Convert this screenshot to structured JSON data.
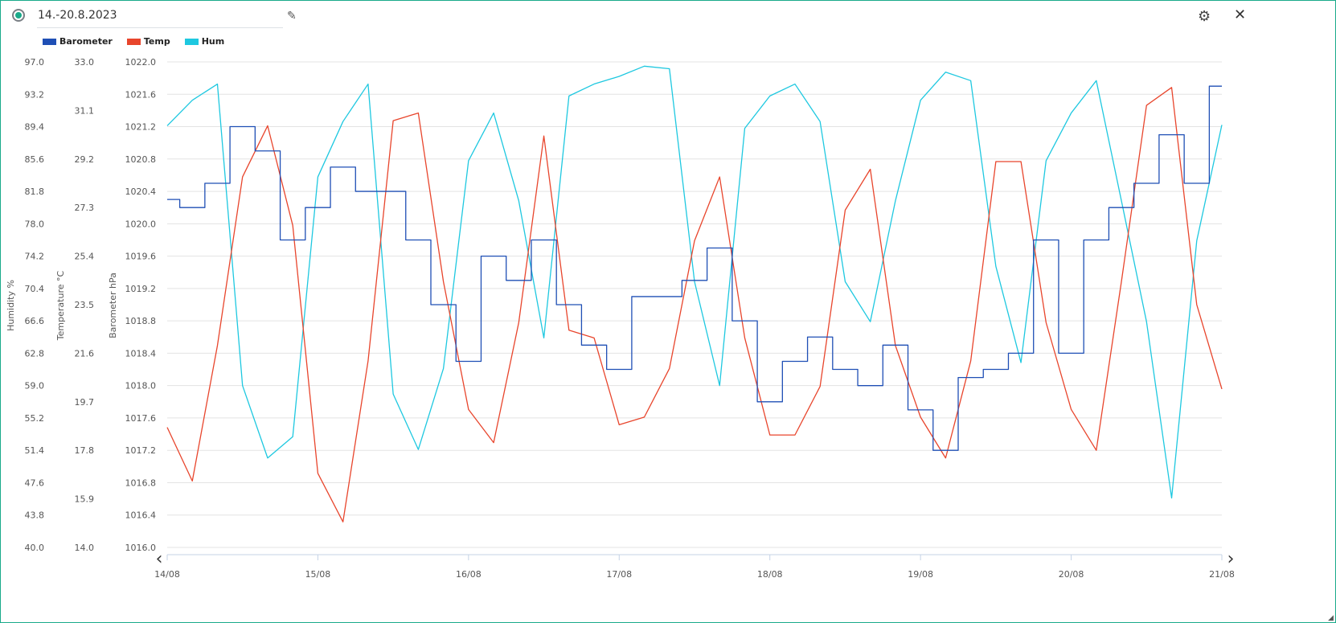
{
  "header": {
    "title": "14.-20.8.2023",
    "status_color": "#1aaa8a",
    "edit_icon": "pencil-icon",
    "settings_icon": "gear-icon",
    "close_icon": "close-icon"
  },
  "chart_data": {
    "type": "line",
    "legend_placement": "top-left",
    "grid": true,
    "x_ticks": [
      "14/08",
      "15/08",
      "16/08",
      "17/08",
      "18/08",
      "19/08",
      "20/08",
      "21/08"
    ],
    "x": [
      "14/08 00:00",
      "14/08 04:00",
      "14/08 08:00",
      "14/08 12:00",
      "14/08 16:00",
      "14/08 20:00",
      "15/08 00:00",
      "15/08 04:00",
      "15/08 08:00",
      "15/08 12:00",
      "15/08 16:00",
      "15/08 20:00",
      "16/08 00:00",
      "16/08 04:00",
      "16/08 08:00",
      "16/08 12:00",
      "16/08 16:00",
      "16/08 20:00",
      "17/08 00:00",
      "17/08 04:00",
      "17/08 08:00",
      "17/08 12:00",
      "17/08 16:00",
      "17/08 20:00",
      "18/08 00:00",
      "18/08 04:00",
      "18/08 08:00",
      "18/08 12:00",
      "18/08 16:00",
      "18/08 20:00",
      "19/08 00:00",
      "19/08 04:00",
      "19/08 08:00",
      "19/08 12:00",
      "19/08 16:00",
      "19/08 20:00",
      "20/08 00:00",
      "20/08 04:00",
      "20/08 08:00",
      "20/08 12:00",
      "20/08 16:00",
      "20/08 20:00",
      "21/08 00:00"
    ],
    "axes": [
      {
        "id": "hum",
        "label": "Humidity %",
        "range": [
          40.0,
          97.0
        ],
        "ticks": [
          "97.0",
          "93.2",
          "89.4",
          "85.6",
          "81.8",
          "78.0",
          "74.2",
          "70.4",
          "66.6",
          "62.8",
          "59.0",
          "55.2",
          "51.4",
          "47.6",
          "43.8",
          "40.0"
        ]
      },
      {
        "id": "temp",
        "label": "Temperature °C",
        "range": [
          14.0,
          33.0
        ],
        "ticks": [
          "33.0",
          "31.1",
          "29.2",
          "27.3",
          "25.4",
          "23.5",
          "21.6",
          "19.7",
          "17.8",
          "15.9",
          "14.0"
        ]
      },
      {
        "id": "baro",
        "label": "Barometer hPa",
        "range": [
          1016.0,
          1022.0
        ],
        "ticks": [
          "1022.0",
          "1021.6",
          "1021.2",
          "1020.8",
          "1020.4",
          "1020.0",
          "1019.6",
          "1019.2",
          "1018.8",
          "1018.4",
          "1018.0",
          "1017.6",
          "1017.2",
          "1016.8",
          "1016.4",
          "1016.0"
        ]
      }
    ],
    "series": [
      {
        "name": "Barometer",
        "axis": "baro",
        "color": "#1f4fb5",
        "step": true,
        "values": [
          1020.3,
          1020.2,
          1020.5,
          1021.2,
          1020.9,
          1019.8,
          1020.2,
          1020.7,
          1020.4,
          1020.4,
          1019.8,
          1019.0,
          1018.3,
          1019.6,
          1019.3,
          1019.8,
          1019.0,
          1018.5,
          1018.2,
          1019.1,
          1019.1,
          1019.3,
          1019.7,
          1018.8,
          1017.8,
          1018.3,
          1018.6,
          1018.2,
          1018.0,
          1018.5,
          1017.7,
          1017.2,
          1018.1,
          1018.2,
          1018.4,
          1019.8,
          1018.4,
          1019.8,
          1020.2,
          1020.5,
          1021.1,
          1020.5,
          1021.7
        ]
      },
      {
        "name": "Temp",
        "axis": "temp",
        "color": "#e8452c",
        "step": false,
        "values": [
          18.7,
          16.6,
          21.9,
          28.5,
          30.5,
          26.6,
          16.9,
          15.0,
          21.3,
          30.7,
          31.0,
          24.4,
          19.4,
          18.1,
          22.8,
          30.1,
          22.5,
          22.2,
          18.8,
          19.1,
          21.0,
          26.0,
          28.5,
          22.2,
          18.4,
          18.4,
          20.3,
          27.2,
          28.8,
          21.9,
          19.1,
          17.5,
          21.3,
          29.1,
          29.1,
          22.8,
          19.4,
          17.8,
          24.4,
          31.3,
          32.0,
          23.5,
          20.2
        ]
      },
      {
        "name": "Hum",
        "axis": "hum",
        "color": "#1ec8e0",
        "step": false,
        "values": [
          89.5,
          92.5,
          94.4,
          59.0,
          50.5,
          53.0,
          83.5,
          90.0,
          94.4,
          58.0,
          51.5,
          61.0,
          85.4,
          91.0,
          80.7,
          64.6,
          93.0,
          94.4,
          95.3,
          96.5,
          96.2,
          71.2,
          59.0,
          89.2,
          93.0,
          94.4,
          90.0,
          71.2,
          66.5,
          80.7,
          92.5,
          95.8,
          94.8,
          73.0,
          61.7,
          85.4,
          91.0,
          94.8,
          80.7,
          66.5,
          45.8,
          76.0,
          89.6
        ]
      }
    ]
  }
}
